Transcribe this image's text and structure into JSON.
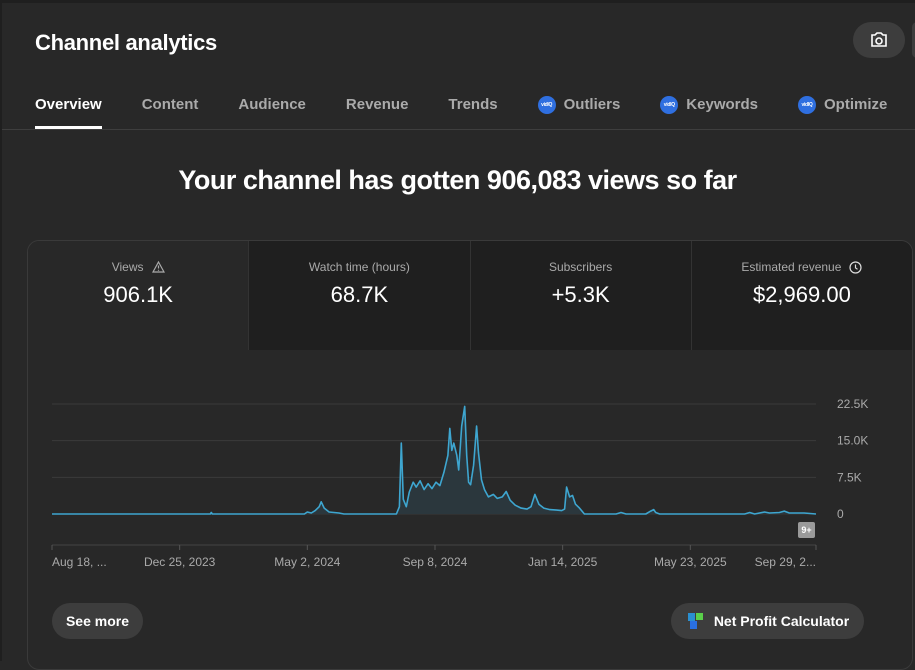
{
  "header": {
    "title": "Channel analytics",
    "camera_icon": "camera-icon"
  },
  "tabs": [
    {
      "label": "Overview",
      "active": true
    },
    {
      "label": "Content"
    },
    {
      "label": "Audience"
    },
    {
      "label": "Revenue"
    },
    {
      "label": "Trends"
    },
    {
      "label": "Outliers",
      "badge": "vidIQ"
    },
    {
      "label": "Keywords",
      "badge": "vidIQ"
    },
    {
      "label": "Optimize",
      "badge": "vidIQ"
    }
  ],
  "headline": "Your channel has gotten 906,083 views so far",
  "metrics": [
    {
      "label": "Views",
      "value": "906.1K",
      "icon": "warning-icon"
    },
    {
      "label": "Watch time (hours)",
      "value": "68.7K"
    },
    {
      "label": "Subscribers",
      "value": "+5.3K"
    },
    {
      "label": "Estimated revenue",
      "value": "$2,969.00",
      "icon": "clock-icon"
    }
  ],
  "buttons": {
    "see_more": "See more",
    "net_profit": "Net Profit Calculator"
  },
  "badge_9plus": "9+",
  "colors": {
    "line": "#3ea6d0",
    "accent": "#2f6fe0"
  },
  "chart_data": {
    "type": "line",
    "series_name": "Views",
    "xlabel": "",
    "ylabel": "",
    "x_unit": "days since Aug 18, 2023",
    "x_tick_labels": [
      "Aug 18, ...",
      "Dec 25, 2023",
      "May 2, 2024",
      "Sep 8, 2024",
      "Jan 14, 2025",
      "May 23, 2025",
      "Sep 29, 2..."
    ],
    "x_tick_days": [
      0,
      129,
      258,
      387,
      516,
      645,
      772
    ],
    "xlim": [
      0,
      772
    ],
    "y_tick_labels": [
      "0",
      "7.5K",
      "15.0K",
      "22.5K"
    ],
    "y_ticks": [
      0,
      7500,
      15000,
      22500
    ],
    "ylim": [
      0,
      22500
    ],
    "points": [
      [
        0,
        0
      ],
      [
        160,
        0
      ],
      [
        161,
        300
      ],
      [
        162,
        0
      ],
      [
        255,
        0
      ],
      [
        258,
        400
      ],
      [
        262,
        200
      ],
      [
        266,
        700
      ],
      [
        270,
        1500
      ],
      [
        272,
        2500
      ],
      [
        275,
        1200
      ],
      [
        280,
        400
      ],
      [
        290,
        200
      ],
      [
        295,
        0
      ],
      [
        348,
        0
      ],
      [
        351,
        1500
      ],
      [
        353,
        14500
      ],
      [
        355,
        3000
      ],
      [
        358,
        1500
      ],
      [
        361,
        4500
      ],
      [
        365,
        6500
      ],
      [
        368,
        5500
      ],
      [
        372,
        6800
      ],
      [
        376,
        5000
      ],
      [
        380,
        6200
      ],
      [
        384,
        5200
      ],
      [
        388,
        6500
      ],
      [
        392,
        5800
      ],
      [
        396,
        8500
      ],
      [
        400,
        12000
      ],
      [
        402,
        17500
      ],
      [
        404,
        13000
      ],
      [
        406,
        14500
      ],
      [
        409,
        12000
      ],
      [
        411,
        9000
      ],
      [
        414,
        18000
      ],
      [
        417,
        22000
      ],
      [
        419,
        12000
      ],
      [
        421,
        6500
      ],
      [
        423,
        6000
      ],
      [
        426,
        10000
      ],
      [
        429,
        18000
      ],
      [
        431,
        12500
      ],
      [
        434,
        7000
      ],
      [
        437,
        5000
      ],
      [
        441,
        3500
      ],
      [
        446,
        4000
      ],
      [
        450,
        3200
      ],
      [
        455,
        3500
      ],
      [
        459,
        4600
      ],
      [
        463,
        2800
      ],
      [
        468,
        1800
      ],
      [
        474,
        1200
      ],
      [
        480,
        1000
      ],
      [
        484,
        1500
      ],
      [
        488,
        4000
      ],
      [
        492,
        2000
      ],
      [
        497,
        1200
      ],
      [
        503,
        900
      ],
      [
        510,
        800
      ],
      [
        515,
        700
      ],
      [
        518,
        1000
      ],
      [
        520,
        5500
      ],
      [
        523,
        3500
      ],
      [
        526,
        3800
      ],
      [
        529,
        2000
      ],
      [
        533,
        1200
      ],
      [
        538,
        0
      ],
      [
        570,
        0
      ],
      [
        575,
        300
      ],
      [
        580,
        0
      ],
      [
        600,
        0
      ],
      [
        605,
        600
      ],
      [
        608,
        900
      ],
      [
        610,
        300
      ],
      [
        614,
        0
      ],
      [
        700,
        0
      ],
      [
        705,
        300
      ],
      [
        710,
        0
      ],
      [
        720,
        400
      ],
      [
        725,
        200
      ],
      [
        735,
        300
      ],
      [
        740,
        600
      ],
      [
        745,
        200
      ],
      [
        760,
        200
      ],
      [
        772,
        0
      ]
    ]
  }
}
